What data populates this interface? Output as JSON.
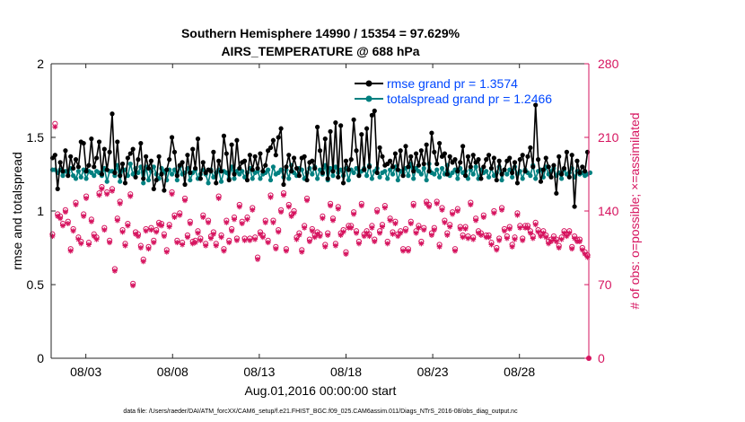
{
  "chart_data": {
    "type": "line",
    "title_line1": "Southern Hemisphere 14990 / 15354 = 97.629%",
    "title_line2": "AIRS_TEMPERATURE @ 688 hPa",
    "ylabel_left": "rmse and totalspread",
    "ylabel_right": "# of obs: o=possible; ×=assimilated",
    "xlabel": "Aug.01,2016 00:00:00 start",
    "footnote": "data file: /Users/raeder/DAI/ATM_forcXX/CAM6_setup/f.e21.FHIST_BGC.f09_025.CAM6assim.011/Diags_NTrS_2016-08/obs_diag_output.nc",
    "ylim_left": [
      0,
      2
    ],
    "ylim_right": [
      0,
      280
    ],
    "xlim": [
      1.0,
      32.0
    ],
    "yticks_left": [
      0,
      0.5,
      1,
      1.5,
      2
    ],
    "ytick_labels_left": [
      "0",
      "0.5",
      "1",
      "1.5",
      "2"
    ],
    "yticks_right": [
      0,
      70,
      140,
      210,
      280
    ],
    "ytick_labels_right": [
      "0",
      "70",
      "140",
      "210",
      "280"
    ],
    "xticks": [
      3,
      8,
      13,
      18,
      23,
      28
    ],
    "xtick_labels": [
      "08/03",
      "08/08",
      "08/13",
      "08/18",
      "08/23",
      "08/28"
    ],
    "colors": {
      "rmse": "#000000",
      "spread": "#008080",
      "obs": "#d6145f",
      "legend_text": "#0047ff"
    },
    "legend": [
      "rmse grand pr = 1.3574",
      "totalspread grand pr = 1.2466"
    ],
    "series": [
      {
        "name": "rmse",
        "axis": "left",
        "values": [
          1.36,
          1.38,
          1.15,
          1.33,
          1.27,
          1.41,
          1.24,
          1.37,
          1.29,
          1.35,
          1.3,
          1.47,
          1.46,
          1.27,
          1.31,
          1.49,
          1.3,
          1.36,
          1.47,
          1.25,
          1.42,
          1.28,
          1.4,
          1.66,
          1.26,
          1.47,
          1.24,
          1.32,
          1.19,
          1.36,
          1.39,
          1.42,
          1.23,
          1.35,
          1.46,
          1.22,
          1.37,
          1.29,
          1.34,
          1.15,
          1.21,
          1.37,
          1.25,
          1.14,
          1.28,
          1.35,
          1.5,
          1.4,
          1.24,
          1.31,
          1.33,
          1.18,
          1.38,
          1.26,
          1.42,
          1.29,
          1.49,
          1.22,
          1.33,
          1.26,
          1.28,
          1.27,
          1.4,
          1.19,
          1.34,
          1.27,
          1.51,
          1.39,
          1.21,
          1.45,
          1.25,
          1.48,
          1.29,
          1.33,
          1.34,
          1.21,
          1.38,
          1.28,
          1.37,
          1.29,
          1.39,
          1.27,
          1.31,
          1.41,
          1.43,
          1.48,
          1.38,
          1.5,
          1.56,
          1.18,
          1.3,
          1.38,
          1.27,
          1.36,
          1.29,
          1.24,
          1.36,
          1.37,
          1.21,
          1.33,
          1.34,
          1.29,
          1.57,
          1.41,
          1.26,
          1.49,
          1.22,
          1.54,
          1.27,
          1.6,
          1.23,
          1.58,
          1.19,
          1.34,
          1.28,
          1.35,
          1.62,
          1.41,
          1.24,
          1.52,
          1.28,
          1.56,
          1.3,
          1.65,
          1.68,
          1.26,
          1.43,
          1.37,
          1.31,
          1.32,
          1.34,
          1.3,
          1.39,
          1.28,
          1.41,
          1.24,
          1.44,
          1.3,
          1.37,
          1.27,
          1.39,
          1.31,
          1.41,
          1.32,
          1.45,
          1.27,
          1.53,
          1.4,
          1.32,
          1.46,
          1.37,
          1.39,
          1.25,
          1.37,
          1.33,
          1.35,
          1.27,
          1.33,
          1.44,
          1.24,
          1.37,
          1.3,
          1.38,
          1.33,
          1.35,
          1.22,
          1.3,
          1.35,
          1.38,
          1.29,
          1.36,
          1.21,
          1.34,
          1.25,
          1.28,
          1.34,
          1.36,
          1.26,
          1.33,
          1.19,
          1.35,
          1.38,
          1.27,
          1.37,
          1.43,
          1.3,
          1.72,
          1.35,
          1.2,
          1.28,
          1.36,
          1.3,
          1.23,
          1.31,
          1.12,
          1.37,
          1.25,
          1.29,
          1.4,
          1.23,
          1.38,
          1.03,
          1.34,
          1.26,
          1.3,
          1.27,
          1.4
        ]
      },
      {
        "name": "totalspread",
        "axis": "left",
        "values": [
          1.28,
          1.28,
          1.26,
          1.28,
          1.24,
          1.27,
          1.26,
          1.29,
          1.24,
          1.22,
          1.27,
          1.23,
          1.28,
          1.22,
          1.27,
          1.26,
          1.24,
          1.27,
          1.26,
          1.24,
          1.29,
          1.2,
          1.27,
          1.27,
          1.24,
          1.31,
          1.2,
          1.28,
          1.28,
          1.24,
          1.32,
          1.25,
          1.29,
          1.26,
          1.3,
          1.19,
          1.3,
          1.21,
          1.27,
          1.3,
          1.25,
          1.22,
          1.29,
          1.27,
          1.21,
          1.28,
          1.25,
          1.28,
          1.21,
          1.3,
          1.25,
          1.26,
          1.29,
          1.21,
          1.26,
          1.28,
          1.22,
          1.25,
          1.28,
          1.25,
          1.19,
          1.28,
          1.23,
          1.26,
          1.28,
          1.2,
          1.27,
          1.26,
          1.22,
          1.3,
          1.22,
          1.27,
          1.25,
          1.27,
          1.23,
          1.26,
          1.29,
          1.22,
          1.26,
          1.27,
          1.22,
          1.25,
          1.26,
          1.28,
          1.21,
          1.3,
          1.25,
          1.26,
          1.28,
          1.23,
          1.28,
          1.22,
          1.31,
          1.26,
          1.24,
          1.29,
          1.28,
          1.22,
          1.26,
          1.29,
          1.25,
          1.3,
          1.22,
          1.28,
          1.25,
          1.31,
          1.21,
          1.29,
          1.24,
          1.3,
          1.26,
          1.28,
          1.24,
          1.29,
          1.21,
          1.28,
          1.26,
          1.29,
          1.25,
          1.27,
          1.29,
          1.24,
          1.31,
          1.22,
          1.27,
          1.29,
          1.23,
          1.26,
          1.27,
          1.22,
          1.28,
          1.25,
          1.3,
          1.21,
          1.27,
          1.26,
          1.29,
          1.24,
          1.32,
          1.22,
          1.29,
          1.27,
          1.25,
          1.29,
          1.21,
          1.32,
          1.26,
          1.25,
          1.28,
          1.23,
          1.29,
          1.25,
          1.31,
          1.24,
          1.26,
          1.28,
          1.22,
          1.29,
          1.26,
          1.27,
          1.22,
          1.28,
          1.25,
          1.3,
          1.22,
          1.28,
          1.26,
          1.27,
          1.23,
          1.29,
          1.24,
          1.26,
          1.3,
          1.21,
          1.28,
          1.25,
          1.28,
          1.23,
          1.3,
          1.25,
          1.27,
          1.22,
          1.28,
          1.26,
          1.24,
          1.31,
          1.22,
          1.27,
          1.28,
          1.23,
          1.3,
          1.25,
          1.27,
          1.29,
          1.24,
          1.26,
          1.22,
          1.28,
          1.25,
          1.26,
          1.29,
          1.23,
          1.27,
          1.25,
          1.26,
          1.24,
          1.25,
          1.26
        ]
      },
      {
        "name": "obs_possible",
        "axis": "right",
        "values": [
          118,
          223,
          137,
          135,
          128,
          141,
          130,
          104,
          123,
          148,
          115,
          111,
          137,
          154,
          110,
          132,
          118,
          115,
          157,
          163,
          124,
          158,
          112,
          161,
          85,
          133,
          149,
          122,
          109,
          128,
          156,
          71,
          120,
          118,
          107,
          94,
          123,
          106,
          124,
          112,
          122,
          129,
          128,
          118,
          103,
          127,
          158,
          136,
          112,
          138,
          110,
          152,
          117,
          130,
          111,
          112,
          121,
          114,
          136,
          109,
          131,
          116,
          120,
          109,
          154,
          117,
          104,
          131,
          112,
          123,
          134,
          114,
          146,
          130,
          114,
          134,
          114,
          143,
          115,
          96,
          120,
          117,
          131,
          112,
          155,
          131,
          106,
          122,
          141,
          157,
          104,
          146,
          137,
          140,
          115,
          119,
          103,
          126,
          152,
          113,
          123,
          117,
          120,
          118,
          135,
          108,
          119,
          147,
          133,
          109,
          144,
          119,
          122,
          101,
          126,
          126,
          139,
          121,
          111,
          147,
          118,
          121,
          118,
          126,
          113,
          141,
          121,
          127,
          145,
          111,
          133,
          120,
          130,
          118,
          121,
          104,
          123,
          104,
          130,
          147,
          121,
          126,
          111,
          124,
          149,
          146,
          119,
          124,
          149,
          108,
          143,
          131,
          119,
          127,
          139,
          104,
          142,
          125,
          117,
          125,
          116,
          148,
          115,
          133,
          121,
          119,
          136,
          117,
          117,
          110,
          140,
          105,
          114,
          143,
          123,
          116,
          125,
          108,
          115,
          138,
          126,
          114,
          126,
          126,
          121,
          116,
          129,
          122,
          118,
          121,
          117,
          111,
          113,
          116,
          113,
          107,
          115,
          121,
          118,
          121,
          106,
          116,
          113,
          113,
          105,
          101,
          98
        ]
      },
      {
        "name": "obs_assimilated",
        "axis": "right",
        "values": [
          116,
          220,
          135,
          133,
          126,
          139,
          128,
          102,
          121,
          146,
          113,
          109,
          135,
          152,
          108,
          130,
          116,
          113,
          155,
          161,
          122,
          156,
          110,
          159,
          83,
          131,
          147,
          120,
          107,
          126,
          154,
          69,
          118,
          116,
          105,
          92,
          121,
          104,
          122,
          110,
          120,
          127,
          126,
          116,
          101,
          125,
          156,
          134,
          110,
          136,
          108,
          150,
          115,
          128,
          109,
          110,
          119,
          112,
          134,
          107,
          129,
          114,
          118,
          107,
          152,
          115,
          102,
          129,
          110,
          121,
          132,
          112,
          144,
          128,
          112,
          132,
          112,
          141,
          113,
          94,
          118,
          115,
          129,
          110,
          153,
          129,
          104,
          120,
          139,
          155,
          102,
          144,
          135,
          138,
          113,
          117,
          101,
          124,
          150,
          111,
          121,
          115,
          118,
          116,
          133,
          106,
          117,
          145,
          131,
          107,
          142,
          117,
          120,
          99,
          124,
          124,
          137,
          119,
          109,
          145,
          116,
          119,
          116,
          124,
          111,
          139,
          119,
          125,
          143,
          109,
          131,
          118,
          128,
          116,
          119,
          102,
          121,
          102,
          128,
          145,
          119,
          124,
          109,
          122,
          147,
          144,
          117,
          122,
          147,
          106,
          141,
          129,
          117,
          125,
          137,
          102,
          140,
          123,
          115,
          123,
          114,
          146,
          113,
          131,
          119,
          117,
          134,
          115,
          115,
          108,
          138,
          103,
          112,
          141,
          121,
          114,
          123,
          106,
          113,
          136,
          124,
          112,
          124,
          124,
          119,
          114,
          127,
          120,
          116,
          119,
          115,
          109,
          111,
          114,
          111,
          105,
          113,
          119,
          116,
          119,
          104,
          114,
          111,
          111,
          103,
          99,
          96
        ]
      }
    ]
  }
}
